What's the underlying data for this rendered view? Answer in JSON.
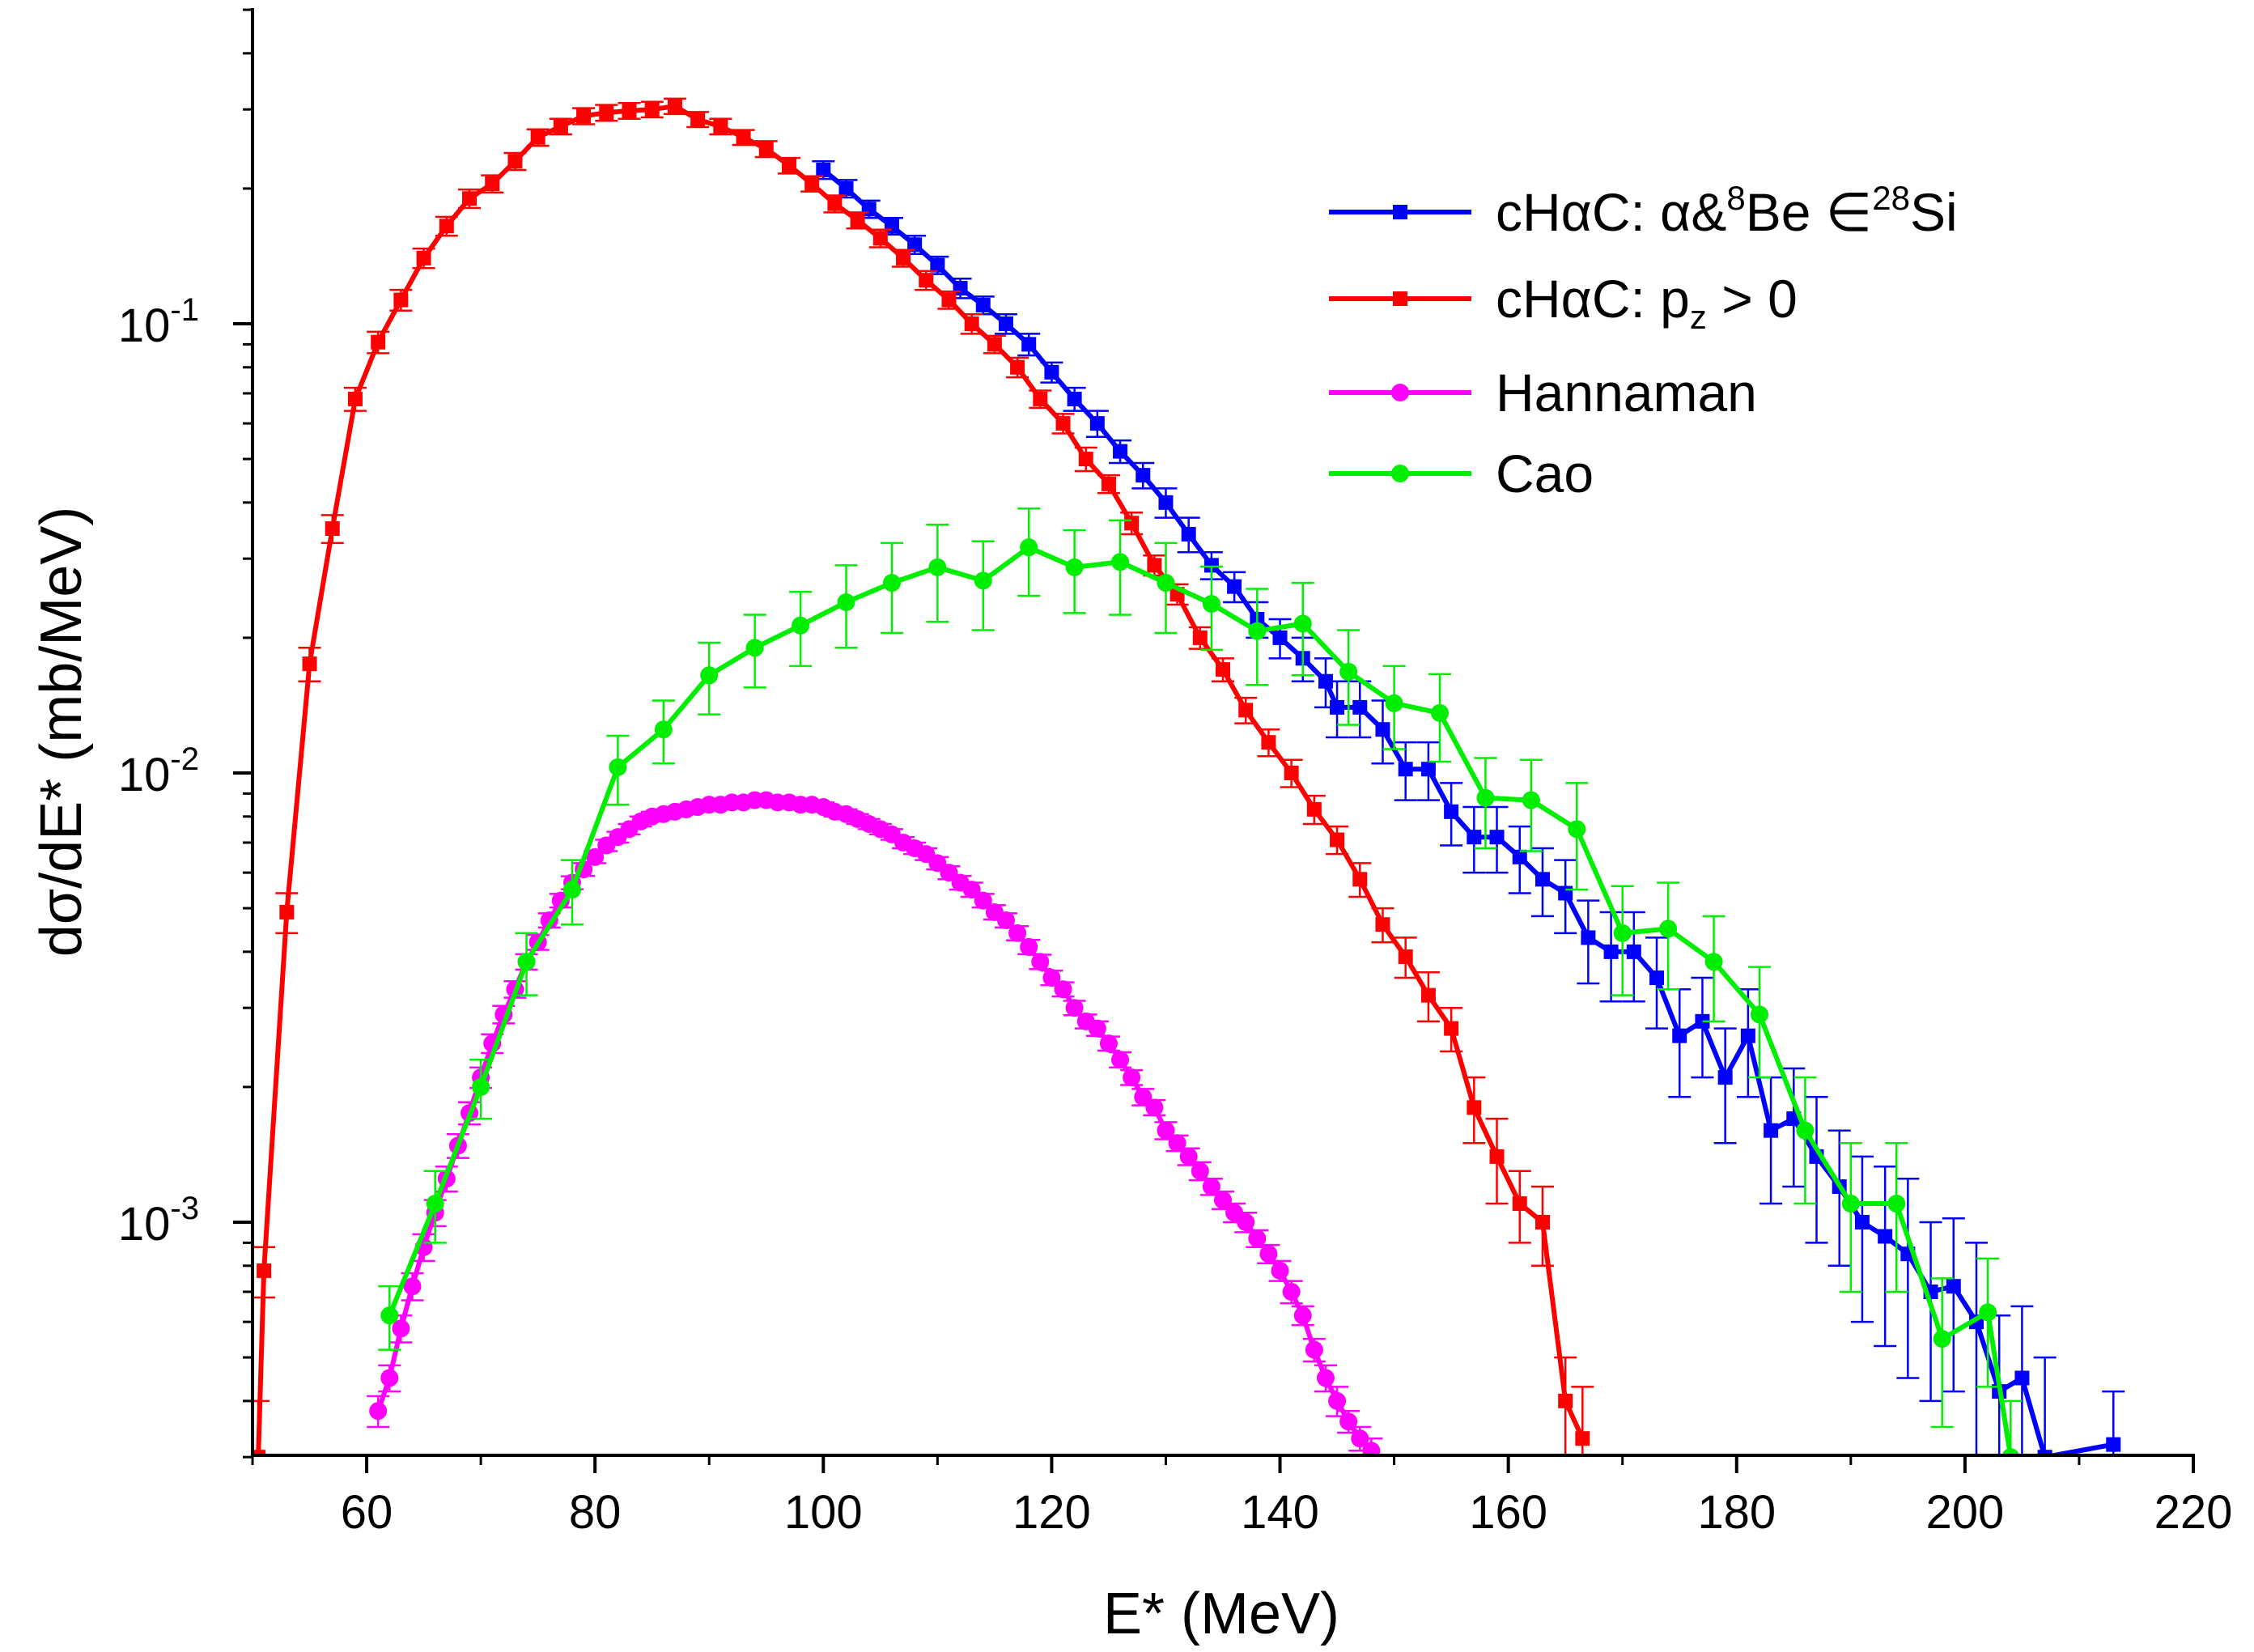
{
  "chart_data": {
    "type": "line",
    "title": "",
    "xlabel": "E* (MeV)",
    "ylabel": "dσ/dE* (mb/MeV)",
    "yscale": "log",
    "xlim": [
      50,
      220
    ],
    "ylim": [
      0.0003,
      0.5
    ],
    "x_ticks": [
      60,
      80,
      100,
      120,
      140,
      160,
      180,
      200,
      220
    ],
    "x_tick_labels": [
      "60",
      "80",
      "100",
      "120",
      "140",
      "160",
      "180",
      "200",
      "220"
    ],
    "y_ticks": [
      {
        "value": 0.1,
        "base": "10",
        "exp": "-1"
      },
      {
        "value": 0.01,
        "base": "10",
        "exp": "-2"
      },
      {
        "value": 0.001,
        "base": "10",
        "exp": "-3"
      }
    ],
    "legend_position": "top-right",
    "series": [
      {
        "name": "cHαC: α&8Be ∈28Si",
        "label_parts": {
          "main1": "cHαC: α&",
          "sup1": "8",
          "main2": "Be ∈",
          "sup2": "28",
          "main3": "Si"
        },
        "color": "#0000ff",
        "marker": "square",
        "x": [
          100,
          102,
          104,
          106,
          108,
          110,
          112,
          114,
          116,
          118,
          120,
          122,
          124,
          126,
          128,
          130,
          132,
          134,
          136,
          138,
          140,
          142,
          144,
          145,
          147,
          149,
          151,
          153,
          155,
          157,
          159,
          161,
          163,
          165,
          167,
          169,
          171,
          173,
          175,
          177,
          179,
          181,
          183,
          185,
          187,
          189,
          191,
          193,
          195,
          197,
          199,
          201,
          203,
          205,
          207,
          213
        ],
        "y": [
          0.22,
          0.2,
          0.18,
          0.165,
          0.15,
          0.135,
          0.12,
          0.11,
          0.1,
          0.09,
          0.078,
          0.068,
          0.06,
          0.052,
          0.046,
          0.04,
          0.034,
          0.029,
          0.026,
          0.022,
          0.02,
          0.018,
          0.016,
          0.014,
          0.014,
          0.0125,
          0.0102,
          0.0102,
          0.0082,
          0.0072,
          0.0072,
          0.0065,
          0.0058,
          0.0054,
          0.0043,
          0.004,
          0.004,
          0.0035,
          0.0026,
          0.0028,
          0.0021,
          0.0026,
          0.0016,
          0.0017,
          0.0014,
          0.0012,
          0.001,
          0.00093,
          0.00085,
          0.0007,
          0.00072,
          0.0006,
          0.00042,
          0.00045,
          0.0003,
          0.00032
        ],
        "yerr": [
          0.01,
          0.009,
          0.008,
          0.007,
          0.007,
          0.006,
          0.006,
          0.005,
          0.005,
          0.005,
          0.004,
          0.004,
          0.004,
          0.003,
          0.003,
          0.003,
          0.003,
          0.002,
          0.002,
          0.002,
          0.002,
          0.002,
          0.002,
          0.002,
          0.002,
          0.002,
          0.0015,
          0.0015,
          0.0013,
          0.0012,
          0.0012,
          0.0011,
          0.001,
          0.001,
          0.0009,
          0.0009,
          0.0009,
          0.0008,
          0.0007,
          0.0007,
          0.0006,
          0.0007,
          0.0005,
          0.0005,
          0.0005,
          0.0004,
          0.0004,
          0.0004,
          0.0004,
          0.0003,
          0.0003,
          0.0003,
          0.0002,
          0.0002,
          0.0002,
          0.0001
        ]
      },
      {
        "name": "cHαC: pz > 0",
        "label_parts": {
          "main1": "cHαC: p",
          "sub": "z",
          "main2": " > 0"
        },
        "color": "#ff0000",
        "marker": "square",
        "x": [
          50.5,
          51,
          53,
          55,
          57,
          59,
          61,
          63,
          65,
          67,
          69,
          71,
          73,
          75,
          77,
          79,
          81,
          83,
          85,
          87,
          89,
          91,
          93,
          95,
          97,
          99,
          101,
          103,
          105,
          107,
          109,
          111,
          113,
          115,
          117,
          119,
          121,
          123,
          125,
          127,
          129,
          131,
          133,
          135,
          137,
          139,
          141,
          143,
          145,
          147,
          149,
          151,
          153,
          155,
          157,
          159,
          161,
          163,
          165,
          166.5
        ],
        "y": [
          0.0003,
          0.00078,
          0.0049,
          0.0175,
          0.035,
          0.068,
          0.091,
          0.113,
          0.14,
          0.165,
          0.19,
          0.205,
          0.23,
          0.26,
          0.275,
          0.29,
          0.295,
          0.298,
          0.3,
          0.305,
          0.285,
          0.275,
          0.26,
          0.245,
          0.225,
          0.205,
          0.185,
          0.17,
          0.155,
          0.14,
          0.125,
          0.113,
          0.1,
          0.09,
          0.08,
          0.068,
          0.06,
          0.05,
          0.044,
          0.036,
          0.029,
          0.025,
          0.02,
          0.017,
          0.0138,
          0.0117,
          0.01,
          0.0083,
          0.0071,
          0.0058,
          0.0046,
          0.0039,
          0.0032,
          0.0027,
          0.0018,
          0.0014,
          0.0011,
          0.001,
          0.0004,
          0.00033
        ],
        "yerr": [
          0.0001,
          0.0001,
          0.0005,
          0.0015,
          0.0025,
          0.004,
          0.005,
          0.006,
          0.007,
          0.008,
          0.009,
          0.009,
          0.01,
          0.011,
          0.011,
          0.012,
          0.012,
          0.012,
          0.012,
          0.012,
          0.011,
          0.011,
          0.01,
          0.01,
          0.009,
          0.008,
          0.008,
          0.007,
          0.007,
          0.006,
          0.006,
          0.005,
          0.005,
          0.004,
          0.004,
          0.003,
          0.003,
          0.003,
          0.002,
          0.002,
          0.0015,
          0.0013,
          0.0011,
          0.001,
          0.0009,
          0.0008,
          0.0007,
          0.0006,
          0.0005,
          0.0005,
          0.0004,
          0.0004,
          0.0004,
          0.0003,
          0.0003,
          0.0003,
          0.0002,
          0.0002,
          0.0001,
          0.0001
        ]
      },
      {
        "name": "Hannaman",
        "color": "#ff00ff",
        "marker": "circle",
        "x": [
          61,
          62,
          63,
          64,
          65,
          66,
          67,
          68,
          69,
          70,
          71,
          72,
          73,
          74,
          75,
          76,
          77,
          78,
          79,
          80,
          81,
          82,
          83,
          84,
          85,
          86,
          87,
          88,
          89,
          90,
          91,
          92,
          93,
          94,
          95,
          96,
          97,
          98,
          99,
          100,
          101,
          102,
          103,
          104,
          105,
          106,
          107,
          108,
          109,
          110,
          111,
          112,
          113,
          114,
          115,
          116,
          117,
          118,
          119,
          120,
          121,
          122,
          123,
          124,
          125,
          126,
          127,
          128,
          129,
          130,
          131,
          132,
          133,
          134,
          135,
          136,
          137,
          138,
          139,
          140,
          141,
          142,
          143,
          144,
          145,
          146,
          147,
          148
        ],
        "y": [
          0.00038,
          0.00045,
          0.00058,
          0.00072,
          0.00088,
          0.00105,
          0.00125,
          0.00148,
          0.00175,
          0.0021,
          0.0025,
          0.0029,
          0.0033,
          0.0038,
          0.0042,
          0.0047,
          0.0052,
          0.0057,
          0.0061,
          0.0065,
          0.0069,
          0.0072,
          0.0075,
          0.0078,
          0.008,
          0.0081,
          0.0082,
          0.0083,
          0.0084,
          0.0085,
          0.0085,
          0.0086,
          0.0086,
          0.0087,
          0.0087,
          0.0086,
          0.0086,
          0.0085,
          0.0085,
          0.0084,
          0.0082,
          0.0081,
          0.0079,
          0.0077,
          0.0075,
          0.0073,
          0.007,
          0.0068,
          0.0066,
          0.0063,
          0.006,
          0.0057,
          0.0055,
          0.0052,
          0.0049,
          0.0047,
          0.0044,
          0.0041,
          0.0038,
          0.0035,
          0.0033,
          0.003,
          0.0028,
          0.0027,
          0.0025,
          0.0023,
          0.0021,
          0.0019,
          0.0018,
          0.0016,
          0.0015,
          0.0014,
          0.0013,
          0.0012,
          0.00112,
          0.00105,
          0.001,
          0.00092,
          0.00085,
          0.00078,
          0.0007,
          0.00062,
          0.00052,
          0.00045,
          0.0004,
          0.00036,
          0.00033,
          0.00031
        ],
        "yerr": [
          3e-05,
          3e-05,
          4e-05,
          5e-05,
          6e-05,
          7e-05,
          8e-05,
          9e-05,
          0.0001,
          0.00011,
          0.00012,
          0.00013,
          0.00014,
          0.00015,
          0.00016,
          0.00017,
          0.00018,
          0.00019,
          0.0002,
          0.0002,
          0.0002,
          0.0002,
          0.0002,
          0.0002,
          0.0002,
          0.0002,
          0.0002,
          0.0002,
          0.0002,
          0.0002,
          0.0002,
          0.0002,
          0.0002,
          0.0002,
          0.0002,
          0.0002,
          0.0002,
          0.0002,
          0.0002,
          0.0002,
          0.0002,
          0.0002,
          0.0002,
          0.0002,
          0.0002,
          0.0002,
          0.0002,
          0.0002,
          0.0002,
          0.0002,
          0.0002,
          0.0002,
          0.0002,
          0.00018,
          0.00018,
          0.00017,
          0.00016,
          0.00015,
          0.00014,
          0.00013,
          0.00012,
          0.00011,
          0.0001,
          0.0001,
          9e-05,
          9e-05,
          8e-05,
          8e-05,
          7e-05,
          7e-05,
          6e-05,
          6e-05,
          6e-05,
          5e-05,
          5e-05,
          5e-05,
          5e-05,
          4e-05,
          4e-05,
          4e-05,
          4e-05,
          3e-05,
          3e-05,
          3e-05,
          3e-05,
          2e-05,
          2e-05,
          2e-05
        ]
      },
      {
        "name": "Cao",
        "color": "#00ee00",
        "marker": "circle",
        "x": [
          62,
          66,
          70,
          74,
          78,
          82,
          86,
          90,
          94,
          98,
          102,
          106,
          110,
          114,
          118,
          122,
          126,
          130,
          134,
          138,
          142,
          146,
          150,
          154,
          158,
          162,
          166,
          170,
          174,
          178,
          182,
          186,
          190,
          194,
          198,
          202,
          204
        ],
        "y": [
          0.00062,
          0.0011,
          0.002,
          0.0038,
          0.0055,
          0.0103,
          0.0125,
          0.0165,
          0.019,
          0.0213,
          0.024,
          0.0265,
          0.0287,
          0.0268,
          0.0318,
          0.0287,
          0.0295,
          0.0265,
          0.0238,
          0.0207,
          0.0215,
          0.0168,
          0.0143,
          0.0136,
          0.0088,
          0.0087,
          0.0075,
          0.0044,
          0.0045,
          0.0038,
          0.0029,
          0.0016,
          0.0011,
          0.0011,
          0.00055,
          0.00063,
          0.0003
        ],
        "yerr": [
          0.0001,
          0.0002,
          0.0003,
          0.0006,
          0.0009,
          0.0018,
          0.002,
          0.003,
          0.0035,
          0.004,
          0.005,
          0.006,
          0.007,
          0.006,
          0.007,
          0.006,
          0.007,
          0.006,
          0.005,
          0.005,
          0.005,
          0.004,
          0.003,
          0.003,
          0.002,
          0.002,
          0.002,
          0.0012,
          0.0012,
          0.001,
          0.0008,
          0.0005,
          0.0004,
          0.0004,
          0.0002,
          0.0002,
          0.0001
        ]
      }
    ]
  }
}
